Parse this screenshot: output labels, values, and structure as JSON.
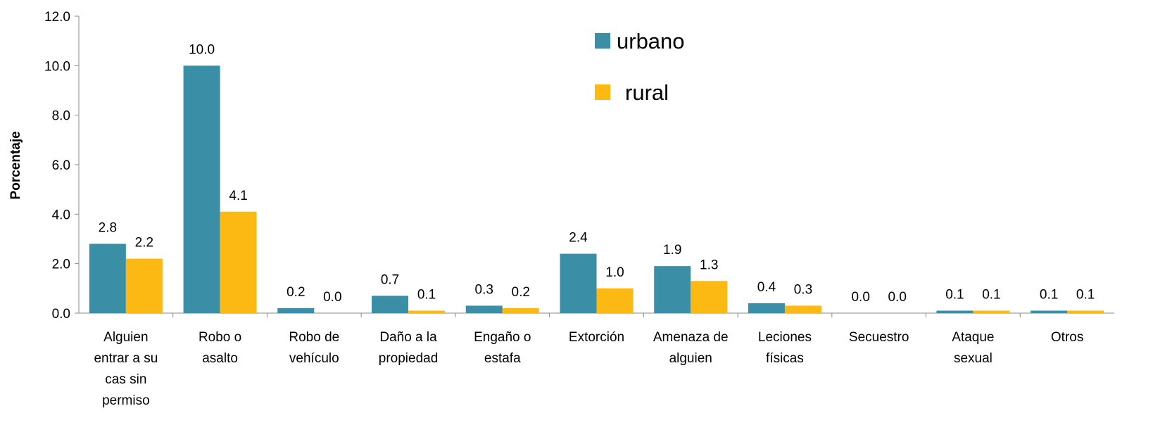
{
  "chart_data": {
    "type": "bar",
    "y_label": "Porcentaje",
    "categories": [
      "Alguien entrar a su cas sin permiso",
      "Robo o asalto",
      "Robo de vehículo",
      "Daño a la propiedad",
      "Engaño o estafa",
      "Extorción",
      "Amenaza de alguien",
      "Leciones físicas",
      "Secuestro",
      "Ataque sexual",
      "Otros"
    ],
    "series": [
      {
        "name": "urbano",
        "color": "#3a8fa6",
        "values": [
          2.8,
          10.0,
          0.2,
          0.7,
          0.3,
          2.4,
          1.9,
          0.4,
          0.0,
          0.1,
          0.1
        ],
        "value_labels": [
          "2.8",
          "10.0",
          "0.2",
          "0.7",
          "0.3",
          "2.4",
          "1.9",
          "0.4",
          "0.0",
          "0.1",
          "0.1"
        ]
      },
      {
        "name": "rural",
        "color": "#fdb913",
        "values": [
          2.2,
          4.1,
          0.0,
          0.1,
          0.2,
          1.0,
          1.3,
          0.3,
          0.0,
          0.1,
          0.1
        ],
        "value_labels": [
          "2.2",
          "4.1",
          "0.0",
          "0.1",
          "0.2",
          "1.0",
          "1.3",
          "0.3",
          "0.0",
          "0.1",
          "0.1"
        ]
      }
    ],
    "ylim": [
      0,
      12
    ],
    "yticks": [
      {
        "value": 0,
        "label": "0.0"
      },
      {
        "value": 2,
        "label": "2.0"
      },
      {
        "value": 4,
        "label": "4.0"
      },
      {
        "value": 6,
        "label": "6.0"
      },
      {
        "value": 8,
        "label": "8.0"
      },
      {
        "value": 10,
        "label": "10.0"
      },
      {
        "value": 12,
        "label": "12.0"
      }
    ],
    "grid": false,
    "legend": "top-center"
  }
}
